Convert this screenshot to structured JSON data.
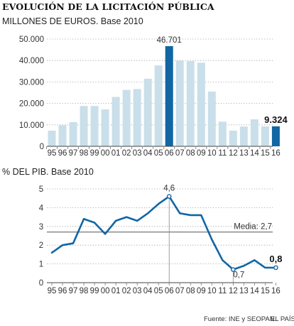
{
  "title": "EVOLUCIÓN DE LA LICITACIÓN PÚBLICA",
  "source": "Fuente: INE y SEOPAN.",
  "brand": "EL PAÍS",
  "colors": {
    "bar": "#c9dfea",
    "bar_highlight": "#1166a4",
    "line": "#1166a4",
    "axis": "#444444",
    "mean_line": "#555555"
  },
  "chart_data": [
    {
      "type": "bar",
      "subtitle": "MILLONES DE EUROS. Base 2010",
      "categories": [
        "95",
        "96",
        "97",
        "98",
        "99",
        "00",
        "01",
        "02",
        "03",
        "04",
        "05",
        "06",
        "07",
        "08",
        "09",
        "10",
        "11",
        "12",
        "13",
        "14",
        "15",
        "16"
      ],
      "values": [
        7300,
        9800,
        11300,
        18800,
        18800,
        17200,
        23000,
        26300,
        26700,
        31500,
        37700,
        46701,
        39900,
        39700,
        39000,
        25500,
        11500,
        7300,
        9200,
        12600,
        9300,
        9324
      ],
      "highlight": [
        "06",
        "16"
      ],
      "data_labels": {
        "06": "46.701",
        "16": "9.324"
      },
      "ylim": [
        0,
        50000
      ],
      "yticks": [
        0,
        10000,
        20000,
        30000,
        40000,
        50000
      ],
      "ytick_labels": [
        "0",
        "10.000",
        "20.000",
        "30.000",
        "40.000",
        "50.000"
      ],
      "grid": "dotted-horizontal"
    },
    {
      "type": "line",
      "subtitle": "% DEL PIB. Base 2010",
      "categories": [
        "95",
        "96",
        "97",
        "98",
        "99",
        "00",
        "01",
        "02",
        "03",
        "04",
        "05",
        "06",
        "07",
        "08",
        "09",
        "10",
        "11",
        "12",
        "13",
        "14",
        "15",
        "16"
      ],
      "values": [
        1.6,
        2.0,
        2.1,
        3.4,
        3.2,
        2.6,
        3.3,
        3.5,
        3.3,
        3.7,
        4.2,
        4.6,
        3.7,
        3.6,
        3.6,
        2.3,
        1.2,
        0.7,
        0.9,
        1.2,
        0.8,
        0.8
      ],
      "ylim": [
        0,
        5
      ],
      "yticks": [
        0,
        1,
        2,
        3,
        4,
        5
      ],
      "ytick_labels": [
        "0",
        "1",
        "2",
        "3",
        "4",
        "5"
      ],
      "mean": 2.7,
      "mean_label": "Media: 2,7",
      "data_labels": {
        "06": "4,6",
        "12": "0,7",
        "16": "0,8"
      },
      "grid": "dotted-horizontal"
    }
  ]
}
